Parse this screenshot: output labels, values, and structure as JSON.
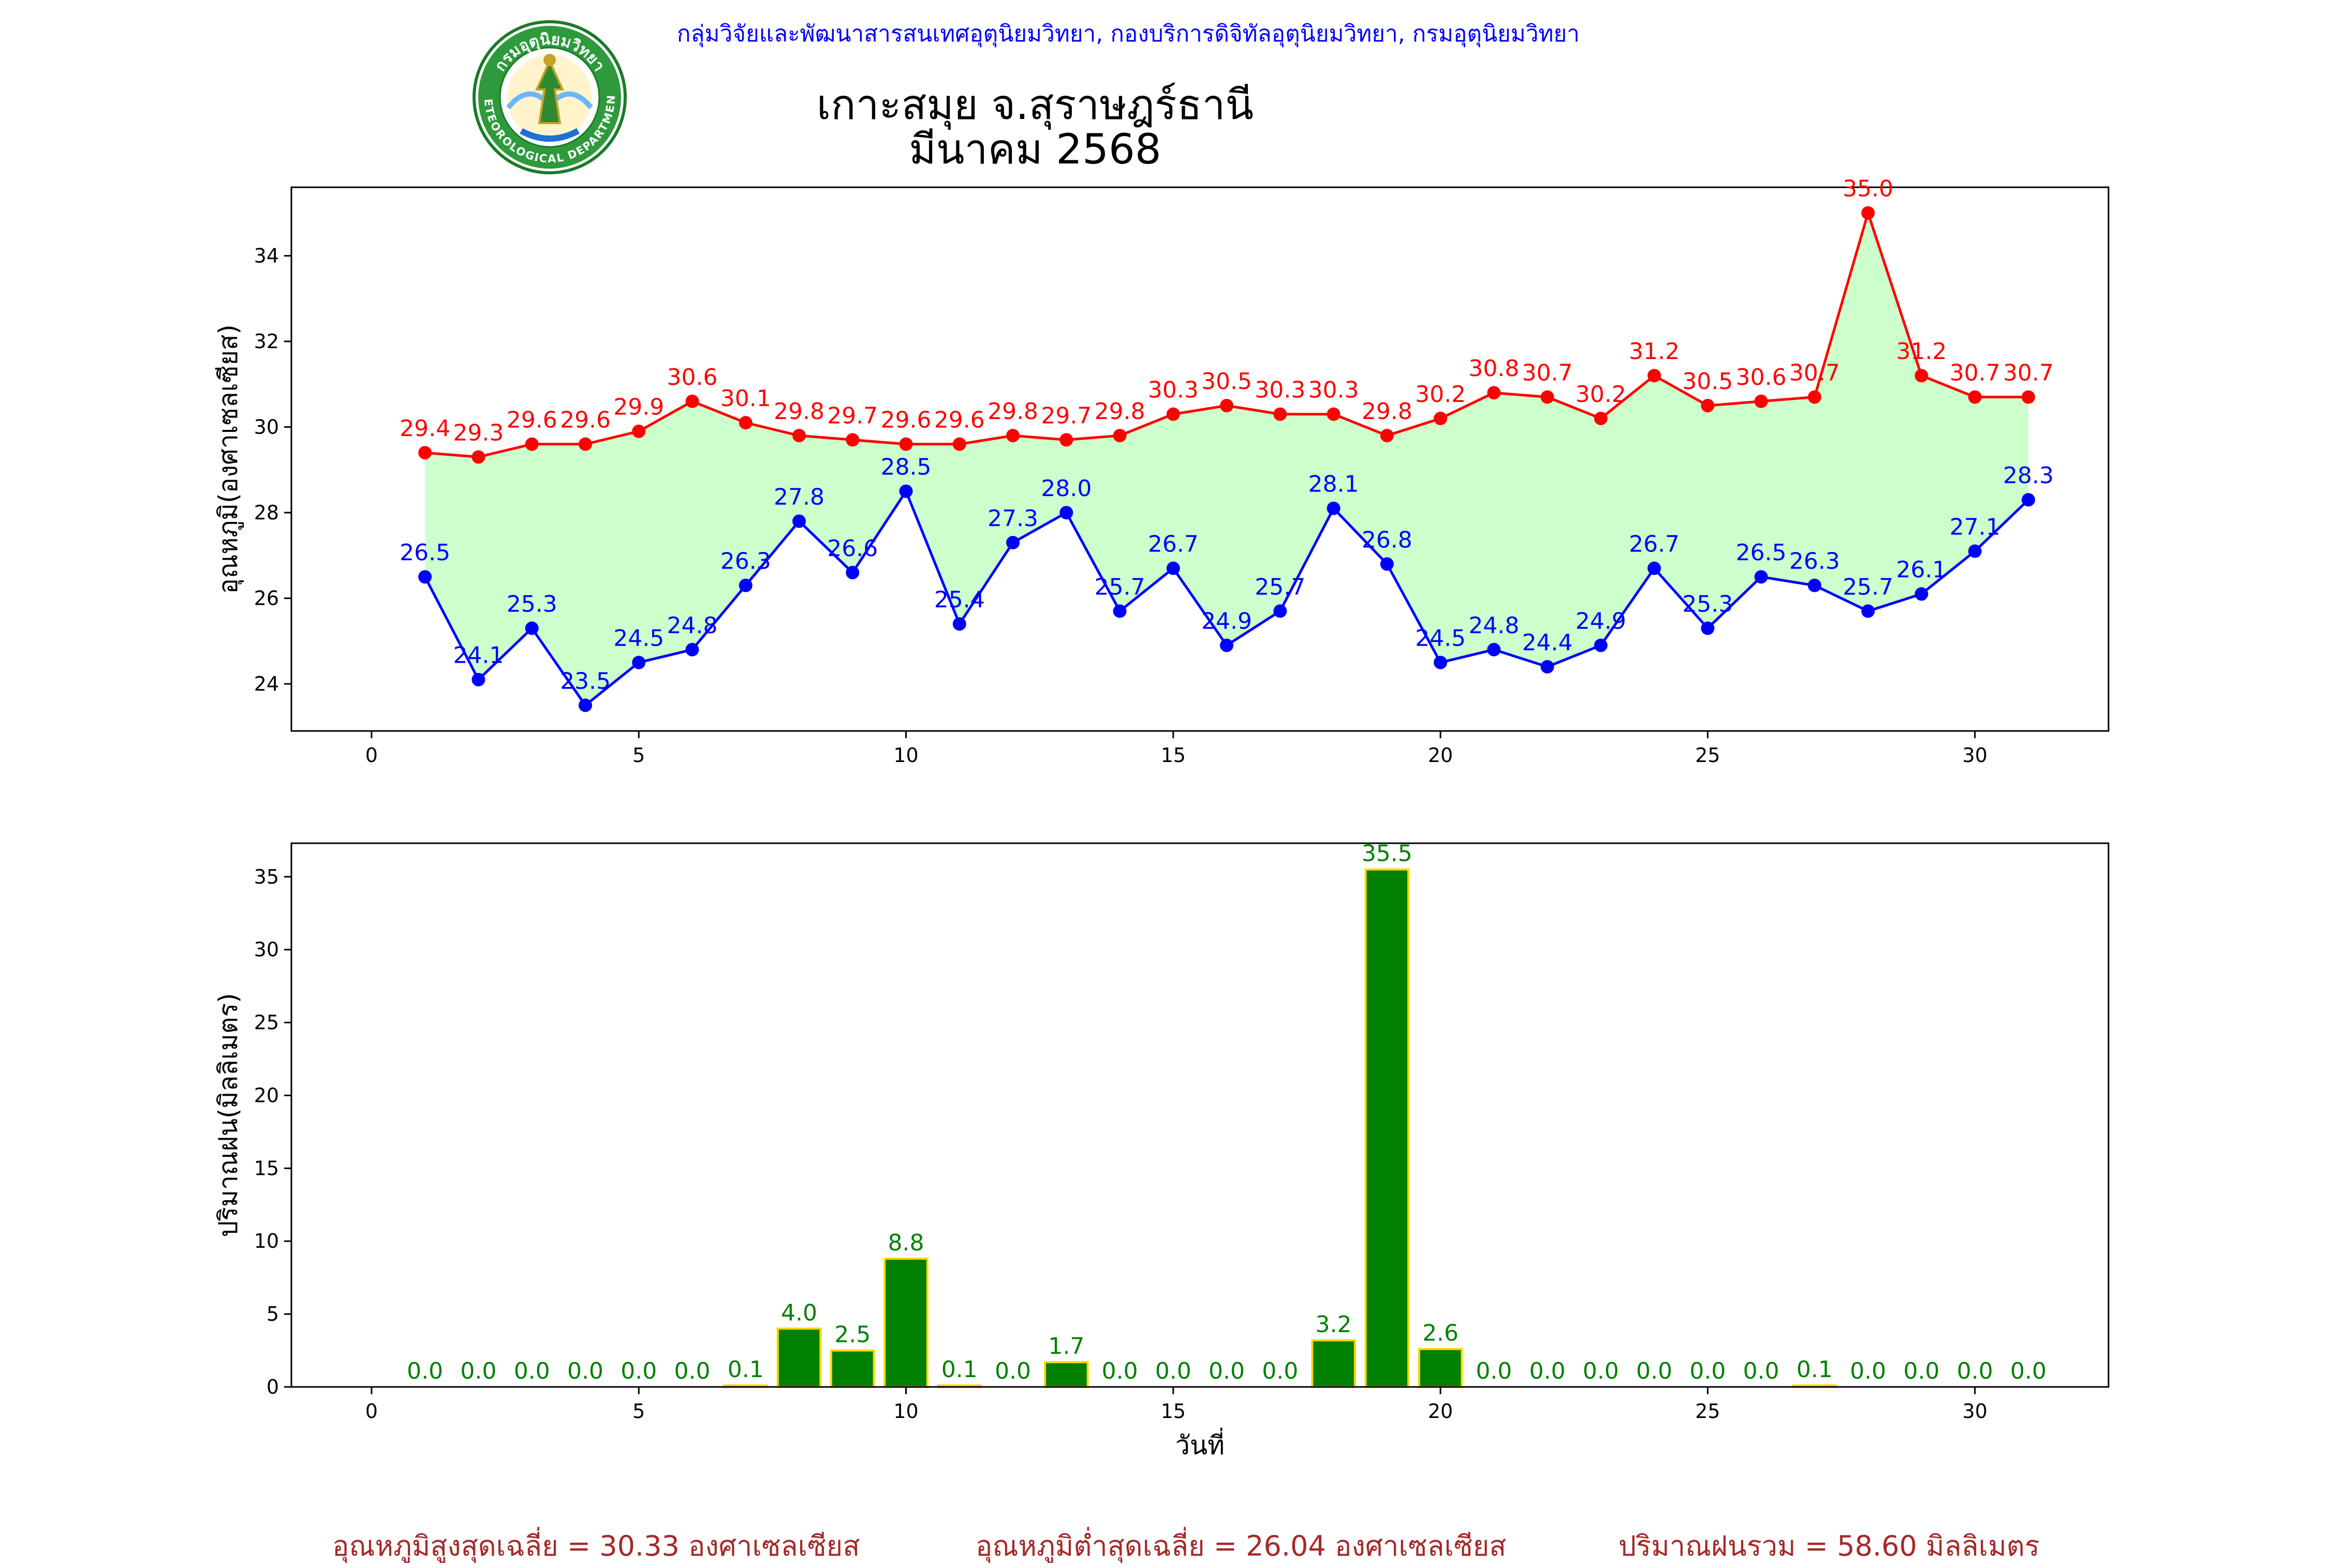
{
  "header": {
    "org_line": "กลุ่มวิจัยและพัฒนาสารสนเทศอุตุนิยมวิทยา, กองบริการดิจิทัลอุตุนิยมวิทยา, กรมอุตุนิยมวิทยา",
    "logo_text": "กรมอุตุนิยมวิทยา",
    "logo_subtext": "METEOROLOGICAL DEPARTMENT",
    "title_line1": "เกาะสมุย จ.สุราษฎร์ธานี",
    "title_line2": "มีนาคม 2568"
  },
  "colors": {
    "max_temp": "#ff0000",
    "min_temp": "#0000ff",
    "fill": "#ccffcc",
    "rain_bar": "#008000",
    "rain_edge": "#ffd700",
    "rain_label": "#008000",
    "footer": "#a52a2a",
    "header": "#0000ff"
  },
  "chart_data": [
    {
      "type": "line",
      "ylabel": "อุณหภูมิ(องศาเซลเซียส)",
      "xlim": [
        -1.5,
        32.5
      ],
      "ylim": [
        22.9,
        35.6
      ],
      "grid": false,
      "x": [
        1,
        2,
        3,
        4,
        5,
        6,
        7,
        8,
        9,
        10,
        11,
        12,
        13,
        14,
        15,
        16,
        17,
        18,
        19,
        20,
        21,
        22,
        23,
        24,
        25,
        26,
        27,
        28,
        29,
        30,
        31
      ],
      "series": [
        {
          "key": "max",
          "values": [
            29.4,
            29.3,
            29.6,
            29.6,
            29.9,
            30.6,
            30.1,
            29.8,
            29.7,
            29.6,
            29.6,
            29.8,
            29.7,
            29.8,
            30.3,
            30.5,
            30.3,
            30.3,
            29.8,
            30.2,
            30.8,
            30.7,
            30.2,
            31.2,
            30.5,
            30.6,
            30.7,
            35.0,
            31.2,
            30.7,
            30.7
          ]
        },
        {
          "key": "min",
          "values": [
            26.5,
            24.1,
            25.3,
            23.5,
            24.5,
            24.8,
            26.3,
            27.8,
            26.6,
            28.5,
            25.4,
            27.3,
            28.0,
            25.7,
            26.7,
            24.9,
            25.7,
            28.1,
            26.8,
            24.5,
            24.8,
            24.4,
            24.9,
            26.7,
            25.3,
            26.5,
            26.3,
            25.7,
            26.1,
            27.1,
            28.3
          ]
        }
      ]
    },
    {
      "type": "bar",
      "ylabel": "ปริมาณฝน(มิลลิเมตร)",
      "xlabel": "วันที่",
      "xlim": [
        -1.5,
        32.5
      ],
      "ylim": [
        0,
        37.3
      ],
      "grid": false,
      "x": [
        1,
        2,
        3,
        4,
        5,
        6,
        7,
        8,
        9,
        10,
        11,
        12,
        13,
        14,
        15,
        16,
        17,
        18,
        19,
        20,
        21,
        22,
        23,
        24,
        25,
        26,
        27,
        28,
        29,
        30,
        31
      ],
      "values": [
        0.0,
        0.0,
        0.0,
        0.0,
        0.0,
        0.0,
        0.1,
        4.0,
        2.5,
        8.8,
        0.1,
        0.0,
        1.7,
        0.0,
        0.0,
        0.0,
        0.0,
        3.2,
        35.5,
        2.6,
        0.0,
        0.0,
        0.0,
        0.0,
        0.0,
        0.0,
        0.1,
        0.0,
        0.0,
        0.0,
        0.0
      ]
    }
  ],
  "footer": {
    "avg_max": "อุณหภูมิสูงสุดเฉลี่ย = 30.33 องศาเซลเซียส",
    "avg_min": "อุณหภูมิต่ำสุดเฉลี่ย = 26.04 องศาเซลเซียส",
    "total_rain": "ปริมาณฝนรวม = 58.60 มิลลิเมตร"
  }
}
